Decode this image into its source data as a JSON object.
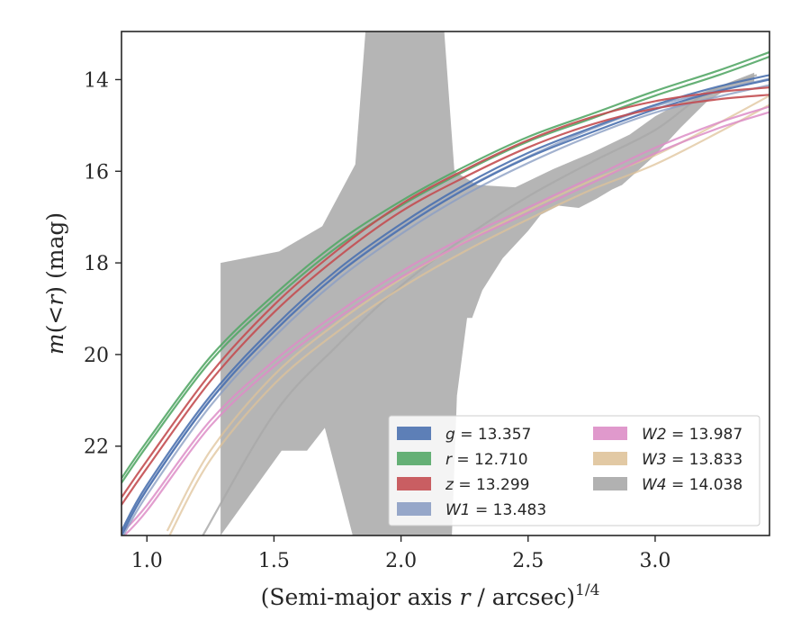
{
  "chart_data": {
    "type": "line",
    "title": "",
    "xlabel": "(Semi-major axis r / arcsec)",
    "xlabel_parts": {
      "prefix": "(Semi-major axis ",
      "var": "r",
      "suffix": " / arcsec)",
      "exponent": "1/4"
    },
    "ylabel": "m(< r) (mag)",
    "ylabel_parts": {
      "func": "m",
      "open": "(",
      "lt": "<",
      "var": "r",
      "close": ")",
      "unit": " (mag)"
    },
    "xlim": [
      0.9,
      3.45
    ],
    "ylim": [
      23.95,
      12.95
    ],
    "y_inverted": true,
    "x_ticks": [
      1.0,
      1.5,
      2.0,
      2.5,
      3.0
    ],
    "x_tick_labels": [
      "1.0",
      "1.5",
      "2.0",
      "2.5",
      "3.0"
    ],
    "y_ticks": [
      14,
      16,
      18,
      20,
      22
    ],
    "y_tick_labels": [
      "14",
      "16",
      "18",
      "20",
      "22"
    ],
    "grid": false,
    "legend_position": "lower-right",
    "legend_columns": 2,
    "series": [
      {
        "name": "g",
        "label_value": "13.357",
        "color": "#4c72b0",
        "opacity": 0.9,
        "band": 0.05,
        "x": [
          0.9,
          1.0,
          1.25,
          1.5,
          1.75,
          2.0,
          2.25,
          2.5,
          2.75,
          3.0,
          3.25,
          3.45
        ],
        "y": [
          23.9,
          22.9,
          20.95,
          19.45,
          18.2,
          17.2,
          16.35,
          15.65,
          15.1,
          14.6,
          14.2,
          13.95
        ]
      },
      {
        "name": "r",
        "label_value": "12.710",
        "color": "#55a868",
        "opacity": 0.9,
        "band": 0.05,
        "x": [
          0.9,
          1.0,
          1.25,
          1.5,
          1.75,
          2.0,
          2.25,
          2.5,
          2.75,
          3.0,
          3.25,
          3.45
        ],
        "y": [
          22.75,
          21.95,
          20.1,
          18.75,
          17.6,
          16.7,
          15.95,
          15.3,
          14.8,
          14.3,
          13.85,
          13.45
        ]
      },
      {
        "name": "z",
        "label_value": "13.299",
        "color": "#c44e52",
        "opacity": 0.9,
        "band": 0.08,
        "x": [
          0.9,
          1.0,
          1.25,
          1.5,
          1.75,
          2.0,
          2.25,
          2.5,
          2.75,
          3.0,
          3.25,
          3.45
        ],
        "y": [
          23.2,
          22.4,
          20.5,
          19.0,
          17.8,
          16.8,
          16.05,
          15.4,
          14.9,
          14.55,
          14.35,
          14.25
        ]
      },
      {
        "name": "W1",
        "label_value": "13.483",
        "color": "#8c9fc4",
        "opacity": 0.8,
        "band": 0.07,
        "x": [
          0.9,
          1.0,
          1.25,
          1.5,
          1.75,
          2.0,
          2.25,
          2.5,
          2.75,
          3.0,
          3.25,
          3.45
        ],
        "y": [
          23.95,
          23.0,
          21.05,
          19.55,
          18.3,
          17.3,
          16.45,
          15.75,
          15.15,
          14.65,
          14.3,
          14.05
        ]
      },
      {
        "name": "W2",
        "label_value": "13.987",
        "color": "#dd8ec7",
        "opacity": 0.85,
        "band": 0.06,
        "x": [
          0.9,
          1.0,
          1.25,
          1.5,
          1.75,
          2.0,
          2.25,
          2.5,
          2.75,
          3.0,
          3.25,
          3.45
        ],
        "y": [
          23.95,
          23.35,
          21.5,
          20.2,
          19.15,
          18.25,
          17.5,
          16.85,
          16.2,
          15.55,
          15.0,
          14.65
        ]
      },
      {
        "name": "W3",
        "label_value": "13.833",
        "color": "#dfc39a",
        "opacity": 0.75,
        "band": 0.1,
        "x": [
          1.08,
          1.25,
          1.5,
          1.75,
          2.0,
          2.25,
          2.5,
          2.75,
          3.0,
          3.25,
          3.45
        ],
        "y": [
          23.95,
          22.2,
          20.55,
          19.4,
          18.45,
          17.65,
          16.95,
          16.3,
          15.75,
          15.05,
          14.45
        ]
      },
      {
        "name": "W4",
        "label_value": "14.038",
        "color": "#a8a8a8",
        "opacity": 0.82,
        "band": 0,
        "x": [
          1.22,
          1.5,
          1.75,
          2.0,
          2.25,
          2.5,
          2.75,
          3.0,
          3.2,
          3.4
        ],
        "y": [
          23.95,
          21.3,
          19.8,
          18.5,
          17.45,
          16.55,
          15.8,
          15.1,
          14.3,
          13.9
        ],
        "region_upper": [
          [
            1.29,
            18.0
          ],
          [
            1.52,
            17.75
          ],
          [
            1.69,
            17.2
          ],
          [
            1.82,
            15.85
          ],
          [
            1.86,
            12.95
          ],
          [
            2.17,
            12.95
          ],
          [
            2.21,
            16.0
          ],
          [
            2.3,
            16.3
          ],
          [
            2.45,
            16.35
          ],
          [
            2.6,
            15.95
          ],
          [
            2.75,
            15.6
          ],
          [
            2.9,
            15.2
          ],
          [
            3.0,
            14.8
          ],
          [
            3.15,
            14.35
          ],
          [
            3.25,
            14.15
          ],
          [
            3.39,
            13.85
          ]
        ],
        "region_lower": [
          [
            1.29,
            23.95
          ],
          [
            1.53,
            22.1
          ],
          [
            1.63,
            22.1
          ],
          [
            1.7,
            21.6
          ],
          [
            1.81,
            23.95
          ],
          [
            2.2,
            23.95
          ],
          [
            2.22,
            20.9
          ],
          [
            2.26,
            19.2
          ],
          [
            2.28,
            19.2
          ],
          [
            2.32,
            18.6
          ],
          [
            2.4,
            17.9
          ],
          [
            2.5,
            17.3
          ],
          [
            2.55,
            16.95
          ],
          [
            2.62,
            16.75
          ],
          [
            2.7,
            16.8
          ],
          [
            2.77,
            16.6
          ],
          [
            2.83,
            16.4
          ],
          [
            2.87,
            16.3
          ],
          [
            2.92,
            16.05
          ],
          [
            3.0,
            15.65
          ],
          [
            3.1,
            15.05
          ],
          [
            3.2,
            14.5
          ],
          [
            3.3,
            14.15
          ],
          [
            3.39,
            14.05
          ]
        ]
      }
    ]
  }
}
